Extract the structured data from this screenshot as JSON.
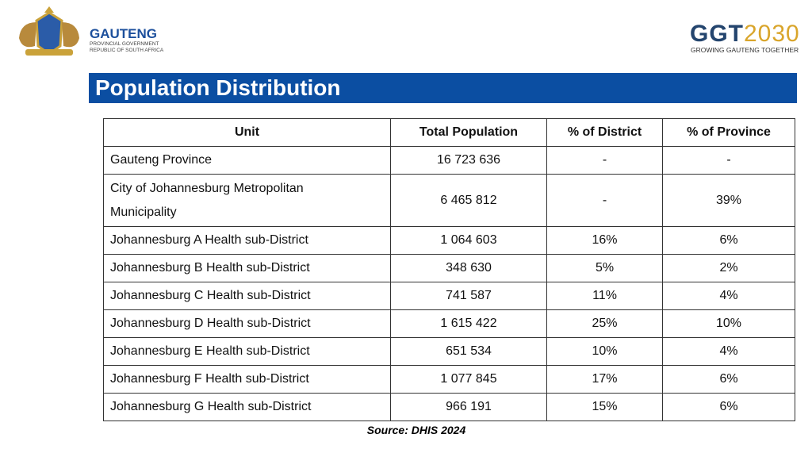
{
  "header": {
    "org_name": "GAUTENG",
    "org_line1": "PROVINCIAL GOVERNMENT",
    "org_line2": "REPUBLIC OF SOUTH AFRICA",
    "ggt_prefix": "GGT",
    "ggt_year": "2030",
    "ggt_tagline": "GROWING GAUTENG TOGETHER"
  },
  "title": "Population Distribution",
  "table": {
    "columns": [
      "Unit",
      "Total Population",
      "% of District",
      "% of Province"
    ],
    "rows": [
      [
        "Gauteng Province",
        "16 723 636",
        "-",
        "-"
      ],
      [
        "City of Johannesburg Metropolitan Municipality",
        "6 465 812",
        "-",
        "39%"
      ],
      [
        "Johannesburg A Health sub-District",
        "1 064 603",
        "16%",
        "6%"
      ],
      [
        "Johannesburg B Health sub-District",
        "348 630",
        "5%",
        "2%"
      ],
      [
        "Johannesburg C Health sub-District",
        "741 587",
        "11%",
        "4%"
      ],
      [
        "Johannesburg D Health sub-District",
        "1 615 422",
        "25%",
        "10%"
      ],
      [
        "Johannesburg E Health sub-District",
        "651 534",
        "10%",
        "4%"
      ],
      [
        "Johannesburg F Health sub-District",
        "1 077 845",
        "17%",
        "6%"
      ],
      [
        "Johannesburg G Health sub-District",
        "966 191",
        "15%",
        "6%"
      ]
    ]
  },
  "source": "Source: DHIS 2024"
}
